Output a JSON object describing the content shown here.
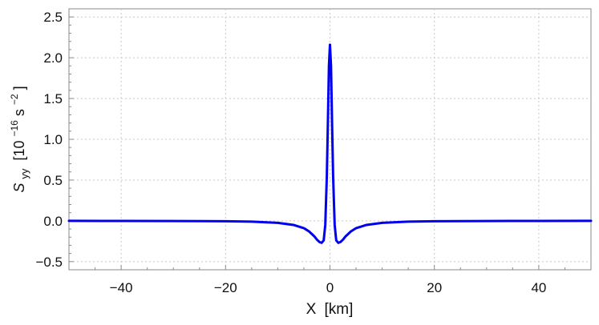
{
  "chart_data": {
    "type": "line",
    "title": "",
    "xlabel_main": "X",
    "xlabel_unit": "[km]",
    "ylabel_symbol": "S",
    "ylabel_subscript": "yy",
    "ylabel_unit_prefix": "[10",
    "ylabel_unit_exp": "−16",
    "ylabel_unit_mid": " s",
    "ylabel_unit_exp2": "−2",
    "ylabel_unit_suffix": "]",
    "xlim": [
      -50,
      50
    ],
    "ylim": [
      -0.6,
      2.6
    ],
    "x_ticks": [
      -40,
      -20,
      0,
      20,
      40
    ],
    "x_tick_labels": [
      "−40",
      "−20",
      "0",
      "20",
      "40"
    ],
    "y_ticks": [
      -0.5,
      0.0,
      0.5,
      1.0,
      1.5,
      2.0,
      2.5
    ],
    "y_tick_labels": [
      "−0.5",
      "0.0",
      "0.5",
      "1.0",
      "1.5",
      "2.0",
      "2.5"
    ],
    "grid": true,
    "line_color": "#0000ee",
    "series": [
      {
        "x": [
          -50,
          -40,
          -30,
          -20,
          -15,
          -10,
          -7,
          -5,
          -4,
          -3,
          -2.5,
          -2,
          -1.6,
          -1.2,
          -0.9,
          -0.6,
          -0.4,
          -0.2,
          0,
          0.2,
          0.4,
          0.6,
          0.9,
          1.2,
          1.6,
          2,
          2.5,
          3,
          4,
          5,
          7,
          10,
          15,
          20,
          30,
          40,
          50
        ],
        "y": [
          0,
          -0.001,
          -0.002,
          -0.005,
          -0.01,
          -0.025,
          -0.05,
          -0.09,
          -0.13,
          -0.19,
          -0.23,
          -0.26,
          -0.27,
          -0.24,
          -0.05,
          0.55,
          1.2,
          1.9,
          2.16,
          1.9,
          1.2,
          0.55,
          -0.05,
          -0.24,
          -0.27,
          -0.26,
          -0.23,
          -0.19,
          -0.13,
          -0.09,
          -0.05,
          -0.025,
          -0.01,
          -0.005,
          -0.002,
          -0.001,
          0
        ]
      }
    ]
  }
}
